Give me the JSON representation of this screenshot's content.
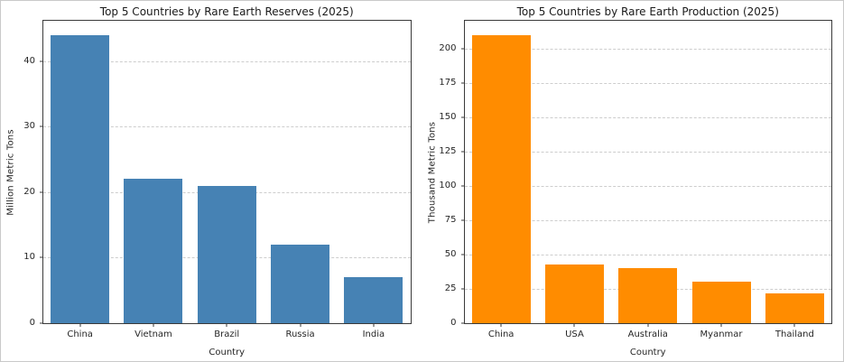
{
  "figure": {
    "background": "#ffffff",
    "border_color": "#c9c9c9",
    "spine_color": "#3a3a3a",
    "gridline_color": "#cdcdcd",
    "text_color": "#262626"
  },
  "chart_data": [
    {
      "type": "bar",
      "title": "Top 5 Countries by Rare Earth Reserves (2025)",
      "xlabel": "Country",
      "ylabel": "Million Metric Tons",
      "categories": [
        "China",
        "Vietnam",
        "Brazil",
        "Russia",
        "India"
      ],
      "values": [
        44,
        22,
        21,
        12,
        7
      ],
      "bar_color": "#4682B4",
      "yticks": [
        0,
        10,
        20,
        30,
        40
      ],
      "ylim": [
        0,
        46.2
      ],
      "grid": "horizontal-dashed",
      "legend": "none"
    },
    {
      "type": "bar",
      "title": "Top 5 Countries by Rare Earth Production (2025)",
      "xlabel": "Country",
      "ylabel": "Thousand Metric Tons",
      "categories": [
        "China",
        "USA",
        "Australia",
        "Myanmar",
        "Thailand"
      ],
      "values": [
        210,
        43,
        40,
        30,
        22
      ],
      "bar_color": "#FF8C00",
      "yticks": [
        0,
        25,
        50,
        75,
        100,
        125,
        150,
        175,
        200
      ],
      "ylim": [
        0,
        220.5
      ],
      "grid": "horizontal-dashed",
      "legend": "none"
    }
  ]
}
